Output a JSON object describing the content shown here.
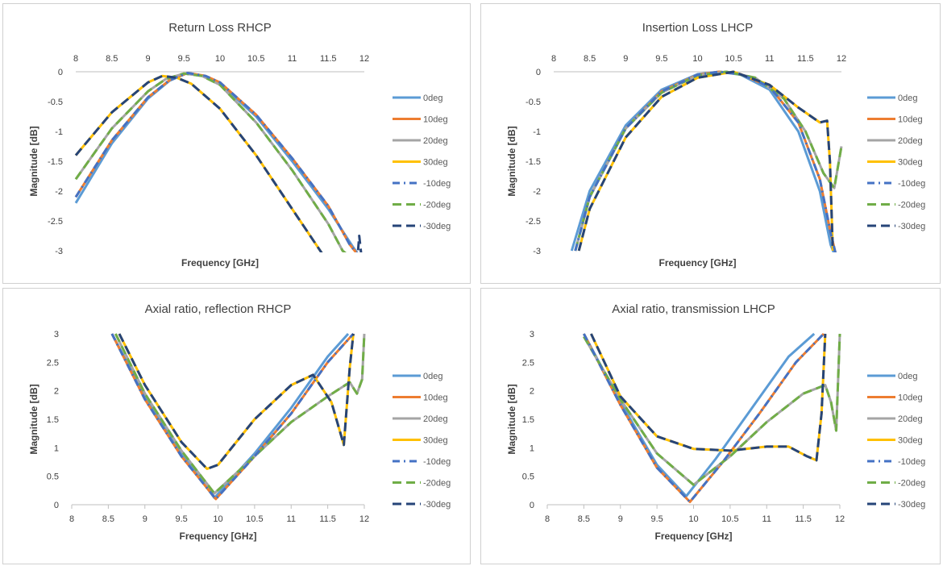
{
  "chart_data": [
    {
      "type": "line",
      "title": "Return Loss RHCP",
      "xlabel": "Frequency [GHz]",
      "ylabel": "Magnitude [dB]",
      "xlim": [
        8,
        12
      ],
      "ylim": [
        -3,
        0
      ],
      "x_axis_position": "top",
      "xticks": [
        "8",
        "8.5",
        "9",
        "9.5",
        "10",
        "10.5",
        "11",
        "11.5",
        "12"
      ],
      "yticks": [
        "0",
        "-0.5",
        "-1",
        "-1.5",
        "-2",
        "-2.5",
        "-3"
      ],
      "legend_position": "right",
      "series": [
        {
          "name": "0deg",
          "x": [
            8.0,
            8.5,
            9.0,
            9.3,
            9.55,
            9.8,
            10.0,
            10.5,
            11.0,
            11.5,
            11.85,
            12.0
          ],
          "y": [
            -2.2,
            -1.2,
            -0.45,
            -0.15,
            -0.02,
            -0.08,
            -0.2,
            -0.75,
            -1.5,
            -2.3,
            -2.95,
            -3.2
          ]
        },
        {
          "name": "10deg",
          "x": [
            8.0,
            8.5,
            9.0,
            9.3,
            9.55,
            9.8,
            10.0,
            10.5,
            11.0,
            11.5,
            11.8,
            12.0
          ],
          "y": [
            -2.1,
            -1.15,
            -0.43,
            -0.14,
            -0.02,
            -0.07,
            -0.18,
            -0.72,
            -1.45,
            -2.25,
            -2.9,
            -3.2
          ]
        },
        {
          "name": "20deg",
          "x": [
            8.0,
            8.5,
            9.0,
            9.25,
            9.5,
            9.75,
            10.0,
            10.5,
            11.0,
            11.5,
            11.7,
            12.0
          ],
          "y": [
            -1.8,
            -0.95,
            -0.33,
            -0.12,
            -0.03,
            -0.07,
            -0.22,
            -0.85,
            -1.65,
            -2.55,
            -3.0,
            -3.3
          ]
        },
        {
          "name": "30deg",
          "x": [
            8.0,
            8.5,
            9.0,
            9.2,
            9.4,
            9.6,
            10.0,
            10.5,
            11.0,
            11.5,
            12.0
          ],
          "y": [
            -1.4,
            -0.68,
            -0.18,
            -0.07,
            -0.1,
            -0.2,
            -0.62,
            -1.4,
            -2.3,
            -3.2,
            -3.5
          ]
        },
        {
          "name": "-10deg",
          "x": [
            8.0,
            8.5,
            9.0,
            9.3,
            9.55,
            9.8,
            10.0,
            10.5,
            11.0,
            11.5,
            11.8,
            12.0
          ],
          "y": [
            -2.1,
            -1.15,
            -0.43,
            -0.14,
            -0.02,
            -0.07,
            -0.18,
            -0.72,
            -1.45,
            -2.25,
            -2.9,
            -3.2
          ]
        },
        {
          "name": "-20deg",
          "x": [
            8.0,
            8.5,
            9.0,
            9.25,
            9.5,
            9.75,
            10.0,
            10.5,
            11.0,
            11.5,
            11.7,
            12.0
          ],
          "y": [
            -1.8,
            -0.95,
            -0.33,
            -0.12,
            -0.03,
            -0.07,
            -0.22,
            -0.85,
            -1.65,
            -2.55,
            -3.0,
            -3.3
          ]
        },
        {
          "name": "-30deg",
          "x": [
            8.0,
            8.5,
            9.0,
            9.2,
            9.4,
            9.6,
            10.0,
            10.5,
            11.0,
            11.5,
            11.88,
            11.93,
            11.97
          ],
          "y": [
            -1.4,
            -0.68,
            -0.18,
            -0.07,
            -0.1,
            -0.2,
            -0.62,
            -1.4,
            -2.3,
            -3.2,
            -3.5,
            -2.75,
            -3.2
          ]
        }
      ]
    },
    {
      "type": "line",
      "title": "Insertion Loss LHCP",
      "xlabel": "Frequency [GHz]",
      "ylabel": "Magnitude [dB]",
      "xlim": [
        8,
        12
      ],
      "ylim": [
        -3,
        0
      ],
      "x_axis_position": "top",
      "xticks": [
        "8",
        "8.5",
        "9",
        "9.5",
        "10",
        "10.5",
        "11",
        "11.5",
        "12"
      ],
      "yticks": [
        "0",
        "-0.5",
        "-1",
        "-1.5",
        "-2",
        "-2.5",
        "-3"
      ],
      "legend_position": "right",
      "series": [
        {
          "name": "0deg",
          "x": [
            8.25,
            8.5,
            9.0,
            9.5,
            10.0,
            10.3,
            10.6,
            11.0,
            11.4,
            11.7,
            11.85,
            11.95
          ],
          "y": [
            -3.0,
            -2.0,
            -0.9,
            -0.3,
            -0.04,
            0.0,
            -0.05,
            -0.3,
            -1.0,
            -2.0,
            -2.9,
            -3.2
          ]
        },
        {
          "name": "10deg",
          "x": [
            8.3,
            8.5,
            9.0,
            9.5,
            10.0,
            10.3,
            10.6,
            11.0,
            11.4,
            11.7,
            11.85,
            11.95
          ],
          "y": [
            -3.0,
            -2.1,
            -0.95,
            -0.33,
            -0.05,
            0.0,
            -0.04,
            -0.25,
            -0.85,
            -1.8,
            -2.7,
            -3.2
          ]
        },
        {
          "name": "20deg",
          "x": [
            8.3,
            8.5,
            9.0,
            9.5,
            10.0,
            10.4,
            10.8,
            11.2,
            11.5,
            11.75,
            11.9,
            12.0
          ],
          "y": [
            -3.0,
            -2.1,
            -0.95,
            -0.35,
            -0.06,
            0.0,
            -0.1,
            -0.45,
            -1.0,
            -1.7,
            -1.95,
            -1.25
          ]
        },
        {
          "name": "30deg",
          "x": [
            8.35,
            8.5,
            9.0,
            9.5,
            10.0,
            10.5,
            11.0,
            11.4,
            11.7,
            11.8,
            11.84,
            11.88
          ],
          "y": [
            -3.0,
            -2.3,
            -1.1,
            -0.42,
            -0.1,
            0.0,
            -0.22,
            -0.6,
            -0.85,
            -0.82,
            -1.5,
            -3.0
          ]
        },
        {
          "name": "-10deg",
          "x": [
            8.3,
            8.5,
            9.0,
            9.5,
            10.0,
            10.3,
            10.6,
            11.0,
            11.4,
            11.7,
            11.85,
            11.95
          ],
          "y": [
            -3.0,
            -2.1,
            -0.95,
            -0.33,
            -0.05,
            0.0,
            -0.04,
            -0.25,
            -0.85,
            -1.8,
            -2.7,
            -3.2
          ]
        },
        {
          "name": "-20deg",
          "x": [
            8.3,
            8.5,
            9.0,
            9.5,
            10.0,
            10.4,
            10.8,
            11.2,
            11.5,
            11.75,
            11.9,
            12.0
          ],
          "y": [
            -3.0,
            -2.1,
            -0.95,
            -0.35,
            -0.06,
            0.0,
            -0.1,
            -0.45,
            -1.0,
            -1.7,
            -1.95,
            -1.25
          ]
        },
        {
          "name": "-30deg",
          "x": [
            8.35,
            8.5,
            9.0,
            9.5,
            10.0,
            10.5,
            11.0,
            11.4,
            11.7,
            11.8,
            11.84,
            11.88
          ],
          "y": [
            -3.0,
            -2.3,
            -1.1,
            -0.42,
            -0.1,
            0.0,
            -0.22,
            -0.6,
            -0.85,
            -0.82,
            -1.5,
            -3.0
          ]
        }
      ]
    },
    {
      "type": "line",
      "title": "Axial ratio, reflection RHCP",
      "xlabel": "Frequency [GHz]",
      "ylabel": "Magnitude [dB]",
      "xlim": [
        8,
        12
      ],
      "ylim": [
        0,
        3
      ],
      "x_axis_position": "bottom",
      "xticks": [
        "8",
        "8.5",
        "9",
        "9.5",
        "10",
        "10.5",
        "11",
        "11.5",
        "12"
      ],
      "yticks": [
        "3",
        "2.5",
        "2",
        "1.5",
        "1",
        "0.5",
        "0"
      ],
      "legend_position": "right",
      "series": [
        {
          "name": "0deg",
          "x": [
            8.55,
            9.0,
            9.5,
            9.95,
            10.5,
            11.0,
            11.5,
            11.78
          ],
          "y": [
            3.0,
            1.9,
            0.9,
            0.12,
            0.9,
            1.7,
            2.6,
            3.0
          ]
        },
        {
          "name": "10deg",
          "x": [
            8.55,
            9.0,
            9.5,
            9.97,
            10.5,
            11.0,
            11.5,
            11.85
          ],
          "y": [
            3.0,
            1.85,
            0.85,
            0.1,
            0.85,
            1.6,
            2.5,
            3.0
          ]
        },
        {
          "name": "20deg",
          "x": [
            8.6,
            9.0,
            9.5,
            9.95,
            10.5,
            11.0,
            11.5,
            11.8,
            11.9,
            11.97,
            12.0
          ],
          "y": [
            3.0,
            1.95,
            0.95,
            0.2,
            0.85,
            1.45,
            1.9,
            2.15,
            1.95,
            2.2,
            3.0
          ]
        },
        {
          "name": "30deg",
          "x": [
            8.65,
            9.0,
            9.5,
            9.85,
            10.0,
            10.5,
            11.0,
            11.3,
            11.55,
            11.72,
            11.8,
            11.85
          ],
          "y": [
            3.0,
            2.1,
            1.1,
            0.63,
            0.7,
            1.5,
            2.1,
            2.28,
            1.8,
            1.05,
            2.4,
            3.0
          ]
        },
        {
          "name": "-10deg",
          "x": [
            8.55,
            9.0,
            9.5,
            9.97,
            10.5,
            11.0,
            11.5,
            11.85
          ],
          "y": [
            3.0,
            1.85,
            0.85,
            0.1,
            0.85,
            1.6,
            2.5,
            3.0
          ]
        },
        {
          "name": "-20deg",
          "x": [
            8.6,
            9.0,
            9.5,
            9.95,
            10.5,
            11.0,
            11.5,
            11.8,
            11.9,
            11.97,
            12.0
          ],
          "y": [
            3.0,
            1.95,
            0.95,
            0.2,
            0.85,
            1.45,
            1.9,
            2.15,
            1.95,
            2.2,
            3.0
          ]
        },
        {
          "name": "-30deg",
          "x": [
            8.65,
            9.0,
            9.5,
            9.85,
            10.0,
            10.5,
            11.0,
            11.3,
            11.55,
            11.72,
            11.8,
            11.85
          ],
          "y": [
            3.0,
            2.1,
            1.1,
            0.63,
            0.7,
            1.5,
            2.1,
            2.28,
            1.8,
            1.05,
            2.4,
            3.0
          ]
        }
      ]
    },
    {
      "type": "line",
      "title": "Axial ratio, transmission LHCP",
      "xlabel": "Frequency [GHz]",
      "ylabel": "Magnitude [dB]",
      "xlim": [
        8,
        12
      ],
      "ylim": [
        0,
        3
      ],
      "x_axis_position": "bottom",
      "xticks": [
        "8",
        "8.5",
        "9",
        "9.5",
        "10",
        "10.5",
        "11",
        "11.5",
        "12"
      ],
      "yticks": [
        "3",
        "2.5",
        "2",
        "1.5",
        "1",
        "0.5",
        "0"
      ],
      "legend_position": "right",
      "series": [
        {
          "name": "0deg",
          "x": [
            8.5,
            9.0,
            9.5,
            9.9,
            10.3,
            10.8,
            11.3,
            11.65
          ],
          "y": [
            3.0,
            1.8,
            0.7,
            0.15,
            0.8,
            1.7,
            2.6,
            3.0
          ]
        },
        {
          "name": "10deg",
          "x": [
            8.5,
            9.0,
            9.5,
            9.95,
            10.4,
            10.9,
            11.4,
            11.78
          ],
          "y": [
            3.0,
            1.75,
            0.65,
            0.05,
            0.75,
            1.6,
            2.5,
            3.0
          ]
        },
        {
          "name": "20deg",
          "x": [
            8.5,
            9.0,
            9.5,
            10.0,
            10.5,
            11.0,
            11.5,
            11.8,
            11.88,
            11.95,
            12.0
          ],
          "y": [
            2.95,
            1.85,
            0.9,
            0.35,
            0.85,
            1.45,
            1.95,
            2.1,
            1.8,
            1.3,
            3.0
          ]
        },
        {
          "name": "30deg",
          "x": [
            8.6,
            9.0,
            9.5,
            10.0,
            10.5,
            11.0,
            11.3,
            11.55,
            11.68,
            11.75,
            11.8
          ],
          "y": [
            3.0,
            1.9,
            1.2,
            0.98,
            0.95,
            1.02,
            1.02,
            0.85,
            0.78,
            1.6,
            3.0
          ]
        },
        {
          "name": "-10deg",
          "x": [
            8.5,
            9.0,
            9.5,
            9.95,
            10.4,
            10.9,
            11.4,
            11.78
          ],
          "y": [
            3.0,
            1.75,
            0.65,
            0.05,
            0.75,
            1.6,
            2.5,
            3.0
          ]
        },
        {
          "name": "-20deg",
          "x": [
            8.5,
            9.0,
            9.5,
            10.0,
            10.5,
            11.0,
            11.5,
            11.8,
            11.88,
            11.95,
            12.0
          ],
          "y": [
            2.95,
            1.85,
            0.9,
            0.35,
            0.85,
            1.45,
            1.95,
            2.1,
            1.8,
            1.3,
            3.0
          ]
        },
        {
          "name": "-30deg",
          "x": [
            8.6,
            9.0,
            9.5,
            10.0,
            10.5,
            11.0,
            11.3,
            11.55,
            11.68,
            11.75,
            11.8
          ],
          "y": [
            3.0,
            1.9,
            1.2,
            0.98,
            0.95,
            1.02,
            1.02,
            0.85,
            0.78,
            1.6,
            3.0
          ]
        }
      ]
    }
  ],
  "style": {
    "series_colors": [
      "#5B9BD5",
      "#ED7D31",
      "#A5A5A5",
      "#FFC000",
      "#4472C4",
      "#70AD47",
      "#264478"
    ],
    "series_dash": [
      "solid",
      "solid",
      "solid",
      "solid",
      "dash-dot",
      "dash",
      "dash"
    ],
    "gridlines": false
  }
}
